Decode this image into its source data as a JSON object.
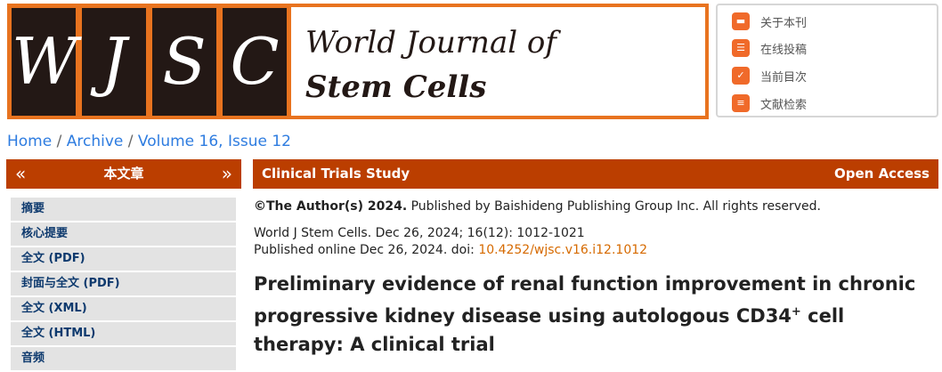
{
  "banner": {
    "letters": [
      "W",
      "J",
      "S",
      "C"
    ],
    "title_line1": "World Journal of",
    "title_line2": "Stem Cells",
    "accent": "#e8731f"
  },
  "quick_links": [
    {
      "icon": "book-icon",
      "label": "关于本刊"
    },
    {
      "icon": "submit-user-icon",
      "label": "在线投稿"
    },
    {
      "icon": "clipboard-check-icon",
      "label": "当前目次"
    },
    {
      "icon": "document-search-icon",
      "label": "文献检索"
    }
  ],
  "breadcrumb": {
    "home": "Home",
    "archive": "Archive",
    "issue": "Volume 16, Issue 12"
  },
  "sidebar": {
    "prev": "«",
    "next": "»",
    "title": "本文章",
    "items": [
      "摘要",
      "核心提要",
      "全文 (PDF)",
      "封面与全文 (PDF)",
      "全文 (XML)",
      "全文 (HTML)",
      "音频"
    ]
  },
  "article": {
    "type": "Clinical Trials Study",
    "access": "Open Access",
    "copyright_bold": "©The Author(s) 2024.",
    "copyright_rest": " Published by Baishideng Publishing Group Inc. All rights reserved.",
    "citation": "World J Stem Cells. Dec 26, 2024; 16(12): 1012-1021",
    "published": "Published online Dec 26, 2024. doi: ",
    "doi": "10.4252/wjsc.v16.i12.1012",
    "title_a": "Preliminary evidence of renal function improvement in chronic progressive kidney disease using autologous CD34",
    "title_sup": "+",
    "title_b": " cell therapy: A clinical trial",
    "bar_color": "#bb3e00"
  }
}
